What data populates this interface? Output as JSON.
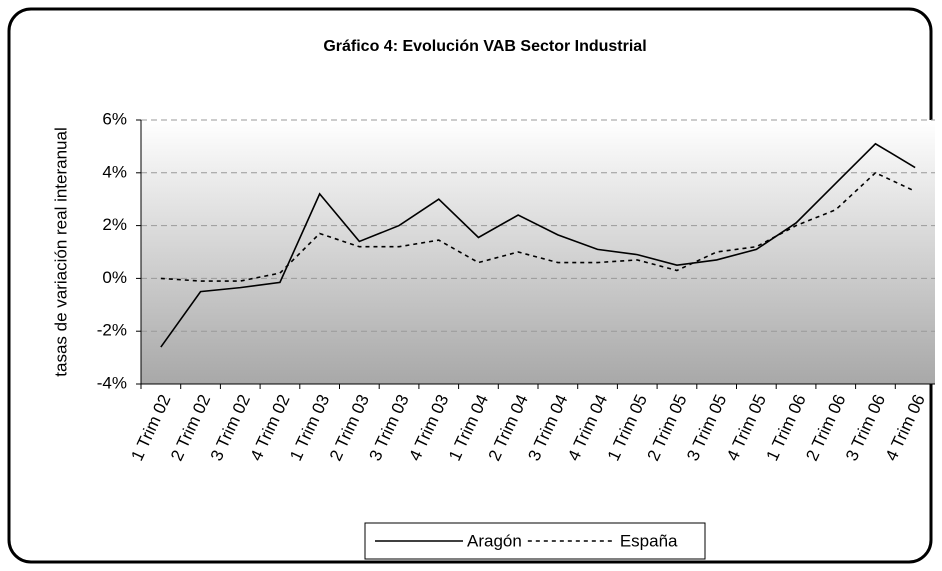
{
  "chart_data": {
    "type": "line",
    "title": "Gráfico 4: Evolución VAB Sector Industrial",
    "y_label": "tasas de variación real interanual",
    "categories": [
      "1 Trim 02",
      "2 Trim 02",
      "3 Trim 02",
      "4 Trim 02",
      "1 Trim 03",
      "2 Trim 03",
      "3 Trim 03",
      "4 Trim 03",
      "1 Trim 04",
      "2 Trim 04",
      "3 Trim 04",
      "4 Trim 04",
      "1 Trim 05",
      "2 Trim 05",
      "3 Trim 05",
      "4 Trim 05",
      "1 Trim 06",
      "2 Trim 06",
      "3 Trim 06",
      "4 Trim 06"
    ],
    "series": [
      {
        "name": "Aragón",
        "color": "#000000",
        "dash": "solid",
        "values": [
          -2.6,
          -0.5,
          -0.35,
          -0.15,
          3.2,
          1.4,
          2.0,
          3.0,
          1.55,
          2.4,
          1.65,
          1.1,
          0.9,
          0.5,
          0.7,
          1.1,
          2.1,
          3.6,
          5.1,
          4.2
        ]
      },
      {
        "name": "España",
        "color": "#000000",
        "dash": "dotted",
        "values": [
          0.0,
          -0.1,
          -0.1,
          0.2,
          1.7,
          1.2,
          1.2,
          1.45,
          0.6,
          1.0,
          0.6,
          0.6,
          0.7,
          0.3,
          1.0,
          1.2,
          2.0,
          2.6,
          4.0,
          3.3
        ]
      }
    ],
    "ylim": [
      -4,
      6
    ],
    "yticks": [
      {
        "value": -4,
        "label": "-4%"
      },
      {
        "value": -2,
        "label": "-2%"
      },
      {
        "value": 0,
        "label": "0%"
      },
      {
        "value": 2,
        "label": "2%"
      },
      {
        "value": 4,
        "label": "4%"
      },
      {
        "value": 6,
        "label": "6%"
      }
    ],
    "grid": true,
    "legend": "bottom"
  }
}
